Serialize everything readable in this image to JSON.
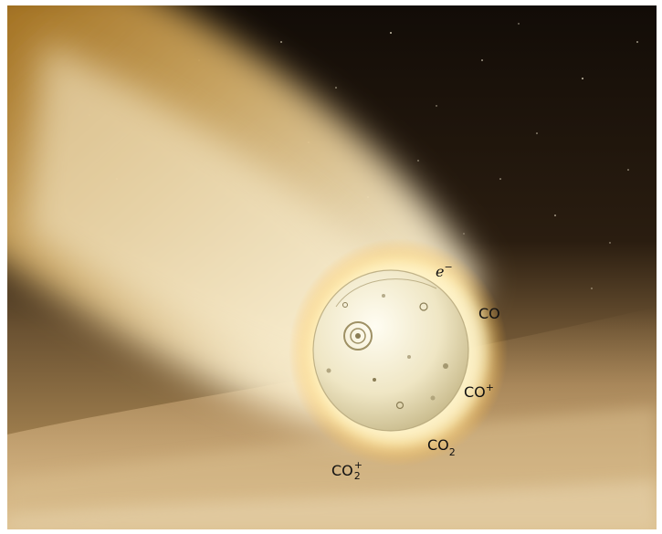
{
  "labels": {
    "electron": {
      "base": "e",
      "sup": "−"
    },
    "co": {
      "base": "CO"
    },
    "co_plus": {
      "base": "CO",
      "sup": "+"
    },
    "co2": {
      "base": "CO",
      "sub": "2"
    },
    "co2_plus": {
      "base": "CO",
      "sub": "2",
      "sup": "+"
    }
  },
  "colors": {
    "space": "#140e08",
    "atmosphere": "#c9a264",
    "plasma_glow": "#fff3b0",
    "capsule": "#eee6c2",
    "trail": "#f2e2b8"
  }
}
